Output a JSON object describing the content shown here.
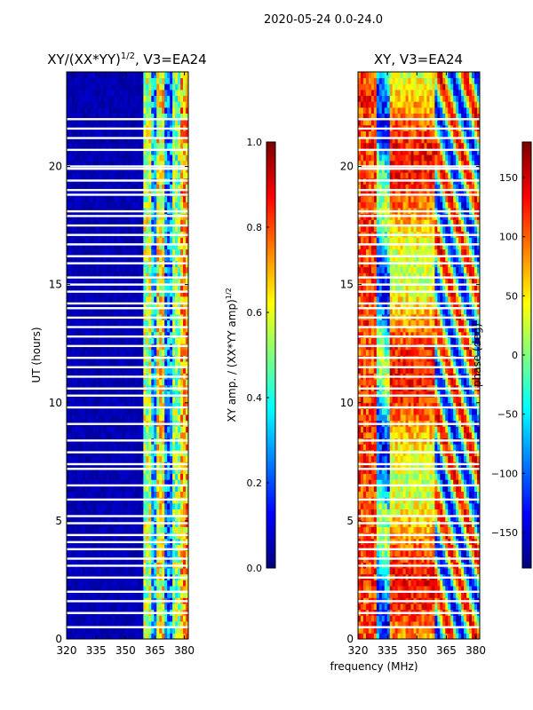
{
  "figure_title": "2020-05-24 0.0-24.0",
  "shared_xlabel": "frequency (MHz)",
  "colors": {
    "gap": "#ffffff",
    "axis": "#000000"
  },
  "chart_data": [
    {
      "type": "heatmap",
      "title_main": "XY/(XX*YY)",
      "title_exp": "1/2",
      "title_tail": ", V3=EA24",
      "ylabel": "UT (hours)",
      "xlim": [
        320,
        382
      ],
      "ylim": [
        0,
        24
      ],
      "xticks": [
        "320",
        "335",
        "350",
        "365",
        "380"
      ],
      "xtick_values": [
        320,
        335,
        350,
        365,
        380
      ],
      "yticks": [
        "0",
        "5",
        "10",
        "15",
        "20"
      ],
      "ytick_values": [
        0,
        5,
        10,
        15,
        20
      ],
      "colormap": "jet",
      "data_source": "amplitude",
      "colorbar": {
        "label_main": "XY amp. / (XX*YY amp)",
        "label_exp": "1/2",
        "range": [
          0.0,
          1.0
        ],
        "ticks": [
          "0.0",
          "0.2",
          "0.4",
          "0.6",
          "0.8",
          "1.0"
        ],
        "tick_values": [
          0.0,
          0.2,
          0.4,
          0.6,
          0.8,
          1.0
        ]
      }
    },
    {
      "type": "heatmap",
      "title_main": "XY, V3=EA24",
      "ylabel": "",
      "xlim": [
        320,
        382
      ],
      "ylim": [
        0,
        24
      ],
      "xticks": [
        "320",
        "335",
        "350",
        "365",
        "380"
      ],
      "xtick_values": [
        320,
        335,
        350,
        365,
        380
      ],
      "yticks": [
        "0",
        "5",
        "10",
        "15",
        "20"
      ],
      "ytick_values": [
        0,
        5,
        10,
        15,
        20
      ],
      "colormap": "jet",
      "data_source": "phase",
      "colorbar": {
        "label_main": "phase (deg)",
        "range": [
          -180,
          180
        ],
        "ticks": [
          "−150",
          "−100",
          "−50",
          "0",
          "50",
          "100",
          "150"
        ],
        "tick_values": [
          -150,
          -100,
          -50,
          0,
          50,
          100,
          150
        ]
      }
    }
  ],
  "flagged_hours": [
    0.5,
    1.1,
    1.6,
    2.0,
    2.6,
    3.1,
    3.4,
    3.8,
    4.1,
    4.4,
    4.9,
    5.2,
    5.9,
    6.5,
    7.2,
    7.4,
    7.9,
    8.4,
    9.1,
    9.8,
    10.3,
    10.6,
    11.1,
    11.5,
    11.9,
    12.4,
    12.8,
    13.2,
    13.6,
    14.0,
    14.2,
    14.7,
    15.0,
    15.3,
    15.9,
    16.2,
    16.7,
    17.1,
    17.5,
    17.9,
    18.1,
    18.8,
    19.0,
    19.4,
    19.9,
    20.0,
    20.7,
    21.2,
    21.6,
    22.0
  ],
  "channel_gap_mhz": [
    336.5,
    358.8
  ]
}
